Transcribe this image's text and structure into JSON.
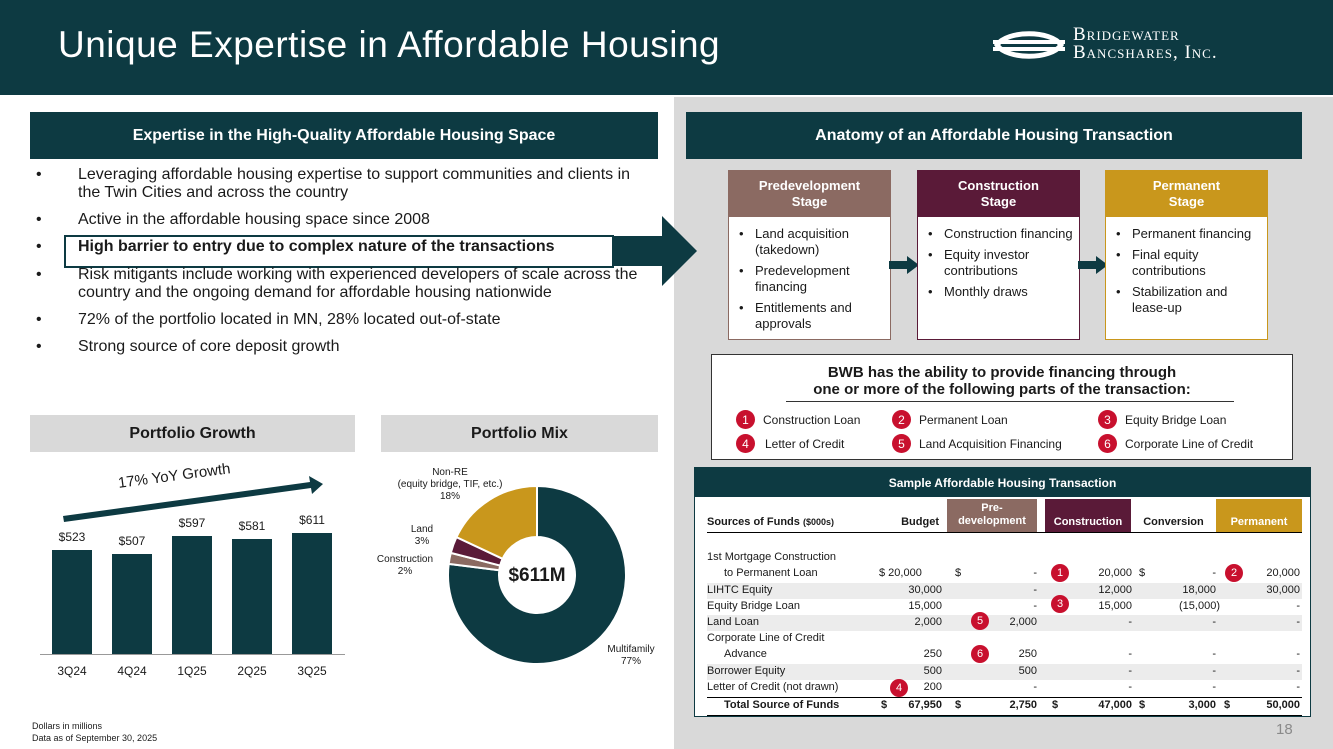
{
  "header": {
    "title": "Unique Expertise in Affordable Housing",
    "logo_line1": "Bridgewater",
    "logo_line2": "Bancshares, Inc."
  },
  "left": {
    "section_title": "Expertise in the High-Quality Affordable Housing Space",
    "bullet_char": "•",
    "bullets": [
      "Leveraging affordable housing expertise to support communities and clients in the Twin Cities and across the country",
      "Active in the affordable housing space since 2008",
      "High barrier to entry due to complex nature of the transactions",
      "Risk mitigants include working with experienced developers of scale across the country and the ongoing demand for affordable housing nationwide",
      "72% of the portfolio located in MN, 28% located out-of-state",
      "Strong source of core deposit growth"
    ]
  },
  "growth": {
    "title": "Portfolio Growth",
    "growth_label": "17% YoY Growth",
    "categories": [
      "3Q24",
      "4Q24",
      "1Q25",
      "2Q25",
      "3Q25"
    ],
    "values": [
      523,
      507,
      597,
      581,
      611
    ],
    "value_labels": [
      "$523",
      "$507",
      "$597",
      "$581",
      "$611"
    ]
  },
  "mix": {
    "title": "Portfolio Mix",
    "center_label": "$611M",
    "label_nonre_1": "Non-RE",
    "label_nonre_2": "(equity bridge, TIF, etc.)",
    "label_nonre_3": "18%",
    "label_land_1": "Land",
    "label_land_2": "3%",
    "label_construction_1": "Construction",
    "label_construction_2": "2%",
    "label_multifamily_1": "Multifamily",
    "label_multifamily_2": "77%"
  },
  "chart_data": [
    {
      "type": "bar",
      "title": "Portfolio Growth",
      "categories": [
        "3Q24",
        "4Q24",
        "1Q25",
        "2Q25",
        "3Q25"
      ],
      "values": [
        523,
        507,
        597,
        581,
        611
      ],
      "ylabel": "Dollars in millions",
      "annotation": "17% YoY Growth"
    },
    {
      "type": "pie",
      "title": "Portfolio Mix",
      "center_label": "$611M",
      "slices": [
        {
          "label": "Multifamily",
          "value": 77,
          "color": "#0d3a42"
        },
        {
          "label": "Construction",
          "value": 2,
          "color": "#8b6a62"
        },
        {
          "label": "Land",
          "value": 3,
          "color": "#5a1a38"
        },
        {
          "label": "Non-RE (equity bridge, TIF, etc.)",
          "value": 18,
          "color": "#c9971c"
        }
      ]
    }
  ],
  "anatomy": {
    "title": "Anatomy of an Affordable Housing Transaction",
    "stages": [
      {
        "title_1": "Predevelopment",
        "title_2": "Stage",
        "color": "#8b6a62",
        "items": [
          "Land acquisition (takedown)",
          "Predevelopment financing",
          "Entitlements and approvals"
        ]
      },
      {
        "title_1": "Construction",
        "title_2": "Stage",
        "color": "#5a1a38",
        "items": [
          "Construction financing",
          "Equity investor contributions",
          "Monthly draws"
        ]
      },
      {
        "title_1": "Permanent",
        "title_2": "Stage",
        "color": "#c9971c",
        "items": [
          "Permanent financing",
          "Final equity contributions",
          "Stabilization and lease-up"
        ]
      }
    ]
  },
  "bwb": {
    "title_1": "BWB has the ability to provide financing through",
    "title_2": "one or more of the following parts of the transaction:",
    "options": [
      {
        "num": "1",
        "label": "Construction Loan"
      },
      {
        "num": "2",
        "label": "Permanent Loan"
      },
      {
        "num": "3",
        "label": "Equity Bridge Loan"
      },
      {
        "num": "4",
        "label": "Letter of Credit"
      },
      {
        "num": "5",
        "label": "Land Acquisition Financing"
      },
      {
        "num": "6",
        "label": "Corporate Line of Credit"
      }
    ]
  },
  "sample": {
    "title": "Sample Affordable Housing Transaction",
    "headers": {
      "sources": "Sources of Funds",
      "sources_unit": "($000s)",
      "budget": "Budget",
      "predev_1": "Pre-",
      "predev_2": "development",
      "construction": "Construction",
      "conversion": "Conversion",
      "permanent": "Permanent"
    },
    "rows": {
      "r1_label_1": "1st Mortgage Construction",
      "r1_label_2": "to Permanent Loan",
      "r1": [
        "$ 20,000",
        "$",
        "-",
        "20,000",
        "$",
        "-",
        "20,000"
      ],
      "r2": [
        "LIHTC Equity",
        "30,000",
        "-",
        "12,000",
        "18,000",
        "30,000"
      ],
      "r3": [
        "Equity Bridge Loan",
        "15,000",
        "-",
        "15,000",
        "(15,000)",
        "-"
      ],
      "r4": [
        "Land Loan",
        "2,000",
        "2,000",
        "-",
        "-",
        "-"
      ],
      "r5_label_1": "Corporate Line of Credit",
      "r5_label_2": "Advance",
      "r5": [
        "250",
        "250",
        "-",
        "-",
        "-"
      ],
      "r6": [
        "Borrower Equity",
        "500",
        "500",
        "-",
        "-",
        "-"
      ],
      "r7": [
        "Letter of Credit (not drawn)",
        "200",
        "-",
        "-",
        "-",
        "-"
      ],
      "total": [
        "Total Source of Funds",
        "$",
        "67,950",
        "$",
        "2,750",
        "$",
        "47,000",
        "$",
        "3,000",
        "$",
        "50,000"
      ]
    },
    "markers": {
      "m1": "1",
      "m2": "2",
      "m3": "3",
      "m4": "4",
      "m5": "5",
      "m6": "6"
    }
  },
  "footnote": {
    "line1": "Dollars in millions",
    "line2": "Data as of September 30, 2025"
  },
  "page_number": "18",
  "colors": {
    "teal": "#0d3a42",
    "predev": "#8b6a62",
    "construction": "#5a1a38",
    "permanent": "#c9971c",
    "marker": "#c8102e"
  }
}
